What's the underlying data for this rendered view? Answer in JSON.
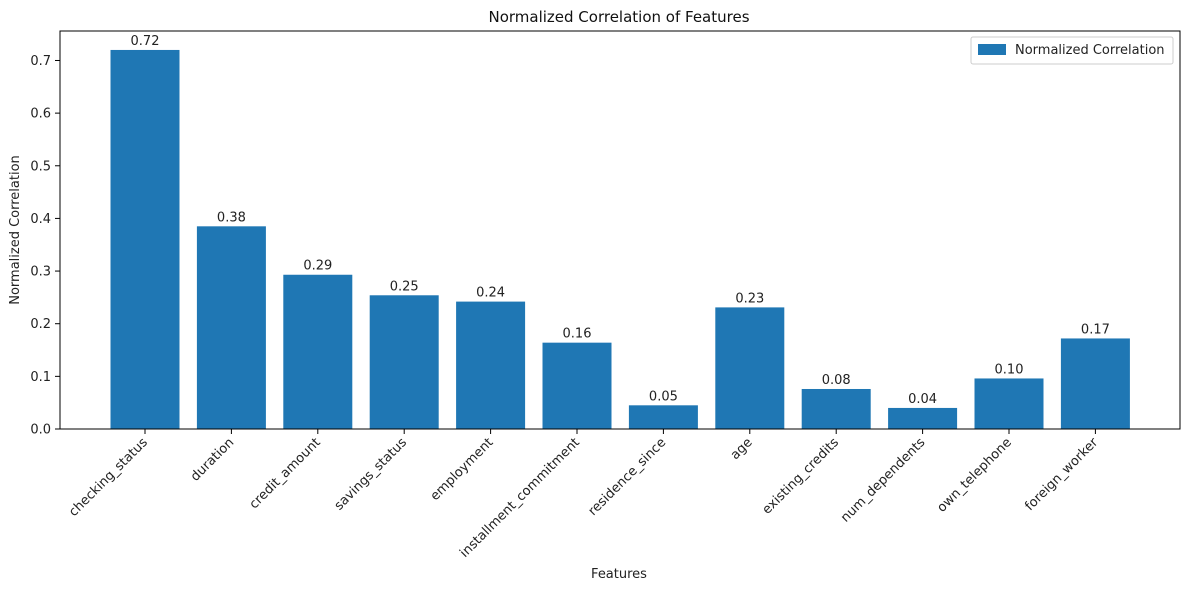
{
  "chart_data": {
    "type": "bar",
    "title": "Normalized Correlation of Features",
    "xlabel": "Features",
    "ylabel": "Normalized Correlation",
    "categories": [
      "checking_status",
      "duration",
      "credit_amount",
      "savings_status",
      "employment",
      "installment_commitment",
      "residence_since",
      "age",
      "existing_credits",
      "num_dependents",
      "own_telephone",
      "foreign_worker"
    ],
    "series": [
      {
        "name": "Normalized Correlation",
        "values": [
          0.72,
          0.385,
          0.293,
          0.254,
          0.242,
          0.164,
          0.045,
          0.231,
          0.076,
          0.04,
          0.096,
          0.172
        ],
        "labels": [
          "0.72",
          "0.38",
          "0.29",
          "0.25",
          "0.24",
          "0.16",
          "0.05",
          "0.23",
          "0.08",
          "0.04",
          "0.10",
          "0.17"
        ],
        "color": "#1f77b4"
      }
    ],
    "ylim": [
      0,
      0.756
    ],
    "yticks": [
      "0.0",
      "0.1",
      "0.2",
      "0.3",
      "0.4",
      "0.5",
      "0.6",
      "0.7"
    ],
    "legend_position": "top-right",
    "grid": false
  }
}
